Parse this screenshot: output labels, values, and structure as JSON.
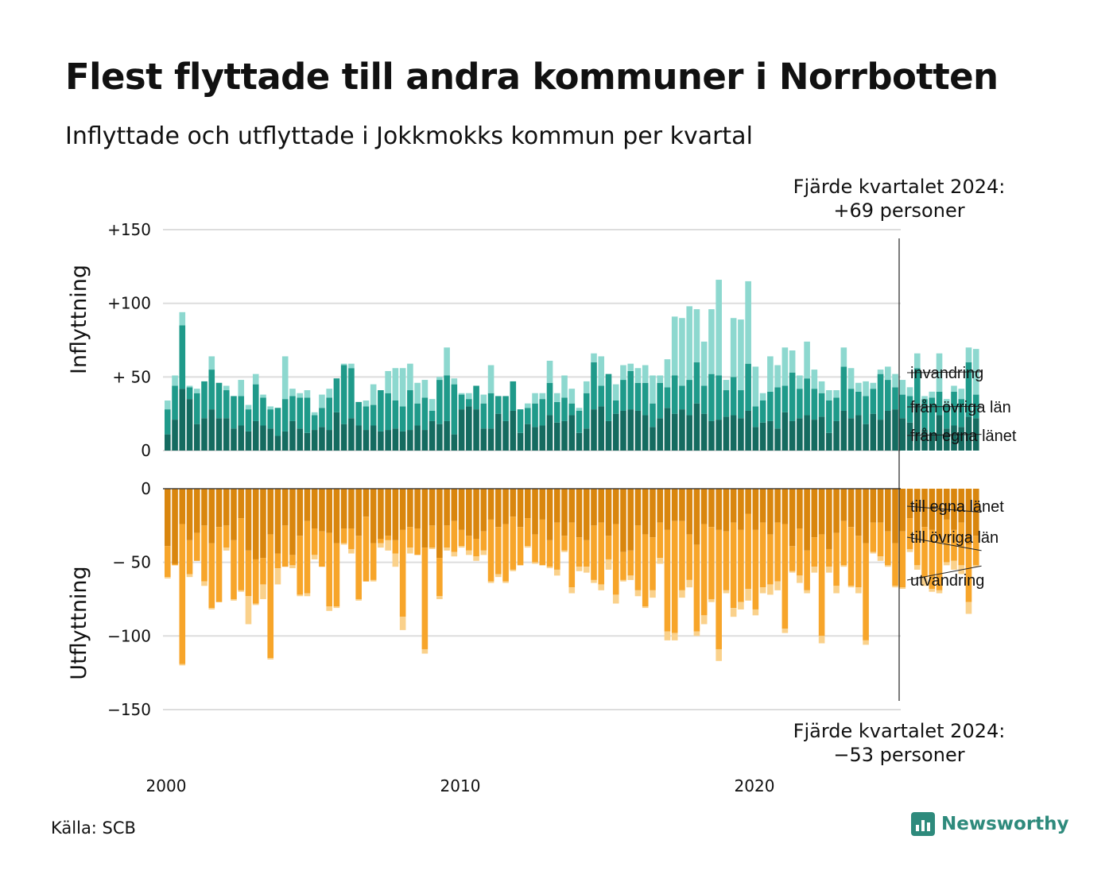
{
  "title": "Flest flyttade till andra kommuner i Norrbotten",
  "subtitle": "Inflyttade och utflyttade i Jokkmokks kommun per kvartal",
  "source": "Källa: SCB",
  "brand": "Newsworthy",
  "colors": {
    "in_own": "#156b60",
    "in_other": "#1f9a8a",
    "in_immig": "#8dd8cf",
    "out_own": "#d9860e",
    "out_other": "#f7a52a",
    "out_emig": "#fad18b",
    "grid": "#dddddd",
    "brand": "#2e8a7c"
  },
  "annotations": {
    "top_line1": "Fjärde kvartalet 2024:",
    "top_line2": "+69 personer",
    "bottom_line1": "Fjärde kvartalet 2024:",
    "bottom_line2": "−53 personer"
  },
  "chart_data": {
    "type": "bar",
    "stacked": true,
    "x_label": "",
    "x_ticks": [
      "2000",
      "2010",
      "2020"
    ],
    "first_quarter": "2000 Q1",
    "panels": [
      {
        "name": "Inflyttning",
        "ylim": [
          0,
          150
        ],
        "ticks": [
          {
            "v": 150,
            "label": "+150"
          },
          {
            "v": 100,
            "label": "+100"
          },
          {
            "v": 50,
            "label": "+ 50"
          },
          {
            "v": 0,
            "label": "0"
          }
        ],
        "series": [
          {
            "name": "från egna länet",
            "color": "#156b60",
            "values": [
              11,
              21,
              42,
              35,
              18,
              22,
              28,
              22,
              22,
              15,
              17,
              13,
              20,
              17,
              15,
              10,
              13,
              20,
              15,
              12,
              14,
              16,
              14,
              26,
              18,
              22,
              17,
              14,
              17,
              13,
              14,
              15,
              13,
              14,
              17,
              14,
              20,
              18,
              20,
              11,
              28,
              30,
              28,
              15,
              15,
              25,
              20,
              27,
              12,
              18,
              16,
              17,
              24,
              19,
              20,
              24,
              12,
              15,
              28,
              30,
              20,
              25,
              27,
              28,
              27,
              24,
              16,
              22,
              29,
              25,
              28,
              24,
              32,
              25,
              20,
              21,
              23,
              24,
              22,
              27,
              16,
              19,
              20,
              15,
              26,
              20,
              22,
              24,
              21,
              23,
              12,
              20,
              27,
              22,
              24,
              18,
              25,
              21,
              27,
              28,
              22,
              19,
              32,
              14,
              12,
              24,
              15,
              17,
              16,
              23,
              22
            ]
          },
          {
            "name": "från övriga län",
            "color": "#1f9a8a",
            "values": [
              17,
              23,
              43,
              8,
              21,
              25,
              27,
              24,
              19,
              22,
              20,
              15,
              25,
              19,
              13,
              19,
              22,
              17,
              21,
              24,
              10,
              13,
              22,
              23,
              40,
              34,
              16,
              16,
              14,
              28,
              25,
              19,
              17,
              27,
              15,
              22,
              7,
              30,
              31,
              34,
              10,
              5,
              16,
              17,
              24,
              12,
              17,
              20,
              16,
              11,
              16,
              18,
              22,
              14,
              16,
              8,
              15,
              24,
              32,
              14,
              32,
              9,
              21,
              26,
              19,
              22,
              16,
              24,
              14,
              26,
              16,
              24,
              28,
              19,
              32,
              30,
              18,
              26,
              19,
              32,
              14,
              15,
              20,
              28,
              18,
              33,
              20,
              25,
              21,
              16,
              22,
              16,
              30,
              20,
              16,
              19,
              17,
              31,
              21,
              15,
              16,
              18,
              24,
              21,
              24,
              16,
              16,
              23,
              19,
              37,
              16
            ]
          },
          {
            "name": "invandring",
            "color": "#8dd8cf",
            "values": [
              6,
              7,
              9,
              1,
              3,
              0,
              9,
              0,
              3,
              0,
              11,
              3,
              7,
              2,
              2,
              0,
              29,
              5,
              3,
              5,
              2,
              9,
              6,
              0,
              1,
              3,
              0,
              4,
              14,
              0,
              15,
              22,
              26,
              18,
              14,
              12,
              8,
              2,
              19,
              4,
              1,
              4,
              0,
              6,
              19,
              0,
              0,
              0,
              0,
              3,
              7,
              4,
              15,
              6,
              15,
              10,
              2,
              8,
              6,
              20,
              0,
              11,
              10,
              5,
              10,
              12,
              19,
              5,
              19,
              40,
              46,
              50,
              36,
              30,
              44,
              65,
              7,
              40,
              48,
              56,
              27,
              5,
              24,
              15,
              26,
              15,
              9,
              25,
              13,
              8,
              7,
              5,
              13,
              14,
              6,
              10,
              4,
              3,
              9,
              9,
              10,
              6,
              10,
              2,
              4,
              26,
              4,
              4,
              7,
              10,
              31
            ]
          }
        ]
      },
      {
        "name": "Utflyttning",
        "ylim": [
          -150,
          0
        ],
        "ticks": [
          {
            "v": 0,
            "label": "0"
          },
          {
            "v": -50,
            "label": "− 50"
          },
          {
            "v": -100,
            "label": "−100"
          },
          {
            "v": -150,
            "label": "−150"
          }
        ],
        "series": [
          {
            "name": "till egna länet",
            "color": "#d9860e",
            "values": [
              -39,
              -51,
              -24,
              -35,
              -30,
              -25,
              -37,
              -26,
              -25,
              -35,
              -20,
              -42,
              -48,
              -47,
              -31,
              -44,
              -25,
              -45,
              -32,
              -22,
              -27,
              -29,
              -30,
              -37,
              -27,
              -27,
              -32,
              -19,
              -37,
              -34,
              -32,
              -35,
              -28,
              -26,
              -27,
              -40,
              -25,
              -47,
              -25,
              -22,
              -28,
              -32,
              -34,
              -29,
              -21,
              -26,
              -24,
              -19,
              -26,
              -20,
              -31,
              -21,
              -35,
              -23,
              -32,
              -23,
              -33,
              -35,
              -25,
              -23,
              -32,
              -24,
              -43,
              -42,
              -25,
              -31,
              -33,
              -23,
              -28,
              -22,
              -22,
              -31,
              -38,
              -24,
              -26,
              -28,
              -29,
              -23,
              -28,
              -17,
              -28,
              -23,
              -31,
              -23,
              -24,
              -39,
              -27,
              -42,
              -33,
              -31,
              -41,
              -30,
              -22,
              -26,
              -32,
              -37,
              -23,
              -23,
              -29,
              -37,
              -29,
              -20,
              -30,
              -26,
              -28,
              -34,
              -21,
              -28,
              -23,
              -38,
              -32
            ]
          },
          {
            "name": "till övriga län",
            "color": "#f7a52a",
            "values": [
              -21,
              -1,
              -95,
              -23,
              -19,
              -38,
              -44,
              -51,
              -15,
              -40,
              -49,
              -31,
              -30,
              -18,
              -84,
              -10,
              -28,
              -7,
              -40,
              -49,
              -18,
              -24,
              -50,
              -43,
              -10,
              -14,
              -43,
              -44,
              -25,
              -3,
              -3,
              -9,
              -59,
              -14,
              -18,
              -69,
              -15,
              -26,
              -15,
              -21,
              -11,
              -10,
              -12,
              -13,
              -42,
              -32,
              -39,
              -36,
              -26,
              -19,
              -19,
              -31,
              -18,
              -32,
              -10,
              -44,
              -20,
              -18,
              -37,
              -42,
              -16,
              -48,
              -19,
              -17,
              -44,
              -49,
              -36,
              -24,
              -69,
              -76,
              -47,
              -31,
              -59,
              -62,
              -49,
              -81,
              -40,
              -58,
              -49,
              -51,
              -54,
              -44,
              -34,
              -40,
              -71,
              -17,
              -32,
              -27,
              -20,
              -69,
              -12,
              -36,
              -30,
              -40,
              -35,
              -66,
              -20,
              -23,
              -23,
              -29,
              -38,
              -21,
              -22,
              -34,
              -40,
              -35,
              -29,
              -21,
              -29,
              -39,
              -20
            ]
          },
          {
            "name": "utvandring",
            "color": "#fad18b",
            "values": [
              -1,
              0,
              -1,
              -2,
              0,
              -3,
              -1,
              0,
              -2,
              -1,
              -1,
              -19,
              -1,
              -10,
              -1,
              -11,
              0,
              -2,
              -1,
              -2,
              -3,
              0,
              -3,
              -1,
              -1,
              -3,
              -1,
              0,
              -1,
              -3,
              -7,
              -9,
              -9,
              -4,
              0,
              -3,
              -1,
              -2,
              -2,
              -3,
              -1,
              -3,
              -3,
              -3,
              -1,
              -2,
              -1,
              -1,
              0,
              -1,
              -1,
              0,
              -1,
              -4,
              -1,
              -4,
              -3,
              -4,
              -2,
              -4,
              -7,
              -6,
              -1,
              -3,
              -4,
              -1,
              -5,
              -4,
              -6,
              -5,
              -5,
              -5,
              -3,
              -6,
              -2,
              -8,
              -2,
              -6,
              -5,
              -8,
              -4,
              -4,
              -7,
              -6,
              -3,
              -1,
              -5,
              -2,
              -4,
              -5,
              -4,
              -5,
              -1,
              -1,
              -4,
              -3,
              -1,
              -3,
              -1,
              -1,
              -1,
              -2,
              -3,
              -6,
              -2,
              -2,
              -2,
              -6,
              -6,
              -8,
              -1
            ]
          }
        ]
      }
    ]
  }
}
